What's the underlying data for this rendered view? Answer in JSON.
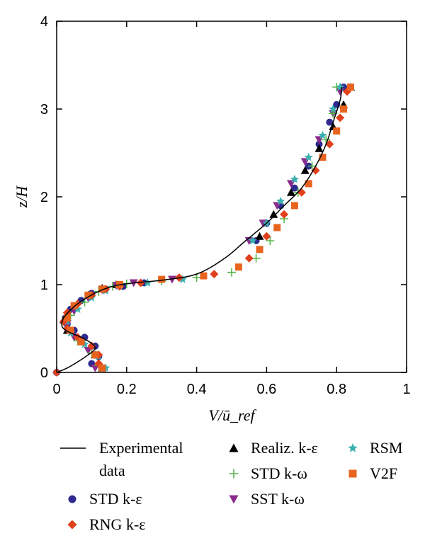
{
  "chart_data": {
    "type": "scatter",
    "xlabel": "V/ū_ref",
    "ylabel": "z/H",
    "xlim": [
      0,
      1
    ],
    "ylim": [
      0,
      4
    ],
    "x_ticks": [
      "0",
      "0.2",
      "0.4",
      "0.6",
      "0.8",
      "1"
    ],
    "y_ticks": [
      "0",
      "1",
      "2",
      "3",
      "4"
    ],
    "grid": false,
    "legend_position": "bottom",
    "legend": [
      {
        "name": "Experimental data",
        "marker": "line",
        "color": "#000000"
      },
      {
        "name": "Realiz. k-ε",
        "marker": "triangle-up",
        "color": "#000000"
      },
      {
        "name": "RSM",
        "marker": "star",
        "color": "#3ab0b0"
      },
      {
        "name": "STD k-ω",
        "marker": "plus",
        "color": "#55b848"
      },
      {
        "name": "V2F",
        "marker": "square",
        "color": "#e8641e"
      },
      {
        "name": "STD k-ε",
        "marker": "circle",
        "color": "#2e2a8f"
      },
      {
        "name": "SST k-ω",
        "marker": "triangle-down",
        "color": "#8a2b8c"
      },
      {
        "name": "RNG k-ε",
        "marker": "diamond",
        "color": "#e0401c"
      }
    ],
    "series": [
      {
        "name": "Experimental data",
        "marker": "line",
        "color": "#000000",
        "x": [
          0.0,
          0.03,
          0.06,
          0.09,
          0.11,
          0.1,
          0.07,
          0.03,
          0.015,
          0.02,
          0.05,
          0.09,
          0.13,
          0.17,
          0.22,
          0.3,
          0.4,
          0.48,
          0.54,
          0.6,
          0.65,
          0.7,
          0.74,
          0.77,
          0.79,
          0.81,
          0.815
        ],
        "y": [
          0.0,
          0.05,
          0.12,
          0.2,
          0.27,
          0.33,
          0.4,
          0.47,
          0.53,
          0.62,
          0.75,
          0.86,
          0.94,
          0.99,
          1.02,
          1.05,
          1.12,
          1.3,
          1.5,
          1.7,
          1.9,
          2.1,
          2.35,
          2.6,
          2.85,
          3.1,
          3.25
        ]
      },
      {
        "name": "STD k-ε",
        "marker": "circle",
        "color": "#2e2a8f",
        "x": [
          0.0,
          0.1,
          0.12,
          0.11,
          0.08,
          0.05,
          0.03,
          0.025,
          0.04,
          0.07,
          0.1,
          0.14,
          0.19,
          0.25,
          0.57,
          0.6,
          0.64,
          0.68,
          0.72,
          0.75,
          0.78,
          0.8,
          0.82
        ],
        "y": [
          0.0,
          0.1,
          0.18,
          0.3,
          0.4,
          0.48,
          0.55,
          0.62,
          0.72,
          0.82,
          0.9,
          0.95,
          0.98,
          1.02,
          1.5,
          1.7,
          1.9,
          2.1,
          2.35,
          2.6,
          2.85,
          3.05,
          3.25
        ]
      },
      {
        "name": "RNG k-ε",
        "marker": "diamond",
        "color": "#e0401c",
        "x": [
          0.0,
          0.12,
          0.12,
          0.1,
          0.06,
          0.03,
          0.02,
          0.03,
          0.06,
          0.1,
          0.14,
          0.18,
          0.24,
          0.35,
          0.45,
          0.55,
          0.6,
          0.65,
          0.7,
          0.74,
          0.78,
          0.81,
          0.83
        ],
        "y": [
          0.0,
          0.1,
          0.2,
          0.3,
          0.4,
          0.5,
          0.58,
          0.68,
          0.78,
          0.88,
          0.95,
          0.98,
          1.02,
          1.08,
          1.12,
          1.3,
          1.55,
          1.8,
          2.05,
          2.3,
          2.6,
          2.9,
          3.2
        ]
      },
      {
        "name": "Realiz. k-ε",
        "marker": "triangle-up",
        "color": "#000000",
        "x": [
          0.13,
          0.11,
          0.07,
          0.03,
          0.02,
          0.05,
          0.09,
          0.13,
          0.17,
          0.58,
          0.62,
          0.67,
          0.71,
          0.75,
          0.79,
          0.82,
          0.84
        ],
        "y": [
          0.05,
          0.2,
          0.35,
          0.48,
          0.6,
          0.75,
          0.88,
          0.96,
          1.0,
          1.55,
          1.8,
          2.05,
          2.3,
          2.55,
          2.8,
          3.05,
          3.25
        ]
      },
      {
        "name": "STD k-ω",
        "marker": "plus",
        "color": "#55b848",
        "x": [
          0.12,
          0.1,
          0.06,
          0.03,
          0.04,
          0.08,
          0.12,
          0.16,
          0.2,
          0.3,
          0.4,
          0.5,
          0.57,
          0.61,
          0.65,
          0.69,
          0.73,
          0.77,
          0.79,
          0.8
        ],
        "y": [
          0.08,
          0.22,
          0.36,
          0.5,
          0.65,
          0.8,
          0.92,
          0.98,
          1.01,
          1.04,
          1.08,
          1.14,
          1.3,
          1.5,
          1.75,
          2.05,
          2.35,
          2.65,
          2.95,
          3.25
        ]
      },
      {
        "name": "SST k-ω",
        "marker": "triangle-down",
        "color": "#8a2b8c",
        "x": [
          0.11,
          0.09,
          0.05,
          0.03,
          0.05,
          0.09,
          0.13,
          0.17,
          0.22,
          0.33,
          0.55,
          0.59,
          0.63,
          0.67,
          0.71,
          0.75,
          0.79,
          0.81
        ],
        "y": [
          0.05,
          0.25,
          0.4,
          0.55,
          0.7,
          0.85,
          0.94,
          0.99,
          1.02,
          1.06,
          1.5,
          1.7,
          1.9,
          2.15,
          2.4,
          2.65,
          2.95,
          3.2
        ]
      },
      {
        "name": "RSM",
        "marker": "star",
        "color": "#3ab0b0",
        "x": [
          0.14,
          0.12,
          0.08,
          0.04,
          0.03,
          0.06,
          0.1,
          0.14,
          0.18,
          0.26,
          0.36,
          0.56,
          0.6,
          0.64,
          0.68,
          0.72,
          0.76,
          0.79,
          0.81
        ],
        "y": [
          0.05,
          0.18,
          0.32,
          0.45,
          0.58,
          0.72,
          0.85,
          0.93,
          0.98,
          1.02,
          1.06,
          1.5,
          1.7,
          1.95,
          2.2,
          2.45,
          2.7,
          3.0,
          3.25
        ]
      },
      {
        "name": "V2F",
        "marker": "square",
        "color": "#e8641e",
        "x": [
          0.13,
          0.11,
          0.07,
          0.04,
          0.03,
          0.05,
          0.09,
          0.13,
          0.18,
          0.3,
          0.42,
          0.52,
          0.58,
          0.63,
          0.68,
          0.72,
          0.76,
          0.8,
          0.82,
          0.84
        ],
        "y": [
          0.05,
          0.2,
          0.35,
          0.48,
          0.62,
          0.76,
          0.88,
          0.95,
          1.0,
          1.06,
          1.1,
          1.2,
          1.4,
          1.65,
          1.9,
          2.15,
          2.45,
          2.75,
          3.0,
          3.25
        ]
      }
    ]
  }
}
